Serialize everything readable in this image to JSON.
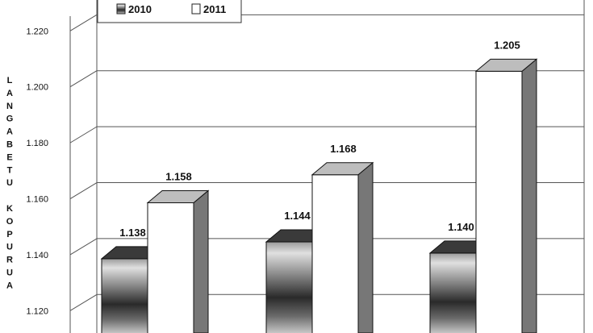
{
  "chart_data": {
    "type": "bar",
    "title": "",
    "xlabel": "",
    "ylabel": "LANGABETU KOPURUA",
    "categories": [
      "",
      "",
      ""
    ],
    "series": [
      {
        "name": "2010",
        "values": [
          1.138,
          1.144,
          1.14
        ],
        "labels": [
          "1.138",
          "1.144",
          "1.140"
        ]
      },
      {
        "name": "2011",
        "values": [
          1.158,
          1.168,
          1.205
        ],
        "labels": [
          "1.158",
          "1.168",
          "1.205"
        ]
      }
    ],
    "yticks": [
      1.12,
      1.14,
      1.16,
      1.18,
      1.2,
      1.22
    ],
    "ytick_labels": [
      "1.120",
      "1.140",
      "1.160",
      "1.180",
      "1.200",
      "1.220"
    ],
    "ylim": [
      1.11,
      1.225
    ],
    "grid": true,
    "legend": "top-left"
  },
  "colors": {
    "series_2010_dark": "#222222",
    "series_2010_light": "#d8d8d8",
    "series_2011_front": "#ffffff",
    "series_2011_side": "#777777",
    "series_2011_top": "#bdbdbd",
    "grid": "#555555"
  }
}
